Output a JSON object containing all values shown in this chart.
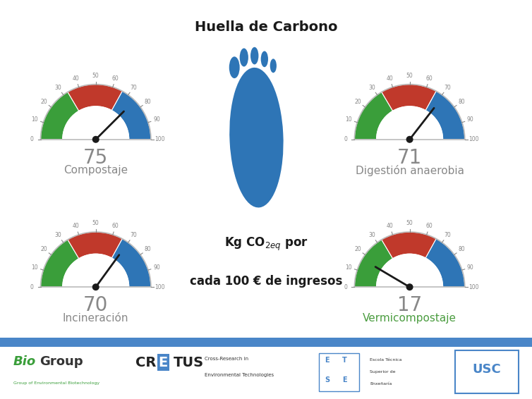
{
  "gauges": [
    {
      "value": 75,
      "label": "Compostaje",
      "label_color": "#888888"
    },
    {
      "value": 71,
      "label": "Digestión anaerobia",
      "label_color": "#888888"
    },
    {
      "value": 70,
      "label": "Incineración",
      "label_color": "#888888"
    },
    {
      "value": 17,
      "label": "Vermicompostaje",
      "label_color": "#4a9c3f"
    }
  ],
  "gauge_min": 0,
  "gauge_max": 100,
  "green_range": [
    0,
    33
  ],
  "red_range": [
    33,
    66
  ],
  "blue_range": [
    66,
    100
  ],
  "green_color": "#3a9e3a",
  "red_color": "#c0392b",
  "blue_color": "#2e75b6",
  "needle_color": "#1a1a1a",
  "bg_color": "#ffffff",
  "title": "Huella de Carbono",
  "title_color": "#1a1a1a",
  "subtitle1": "Kg CO",
  "subtitle_sub": "2eq",
  "subtitle2": " por",
  "subtitle3": "cada 100 € de ingresos",
  "footprint_color": "#2e75b6",
  "footer_line_color": "#4a86c8",
  "value_fontsize": 20,
  "label_fontsize": 11,
  "tick_fontsize": 5.5,
  "title_fontsize": 14,
  "subtitle_fontsize": 12
}
